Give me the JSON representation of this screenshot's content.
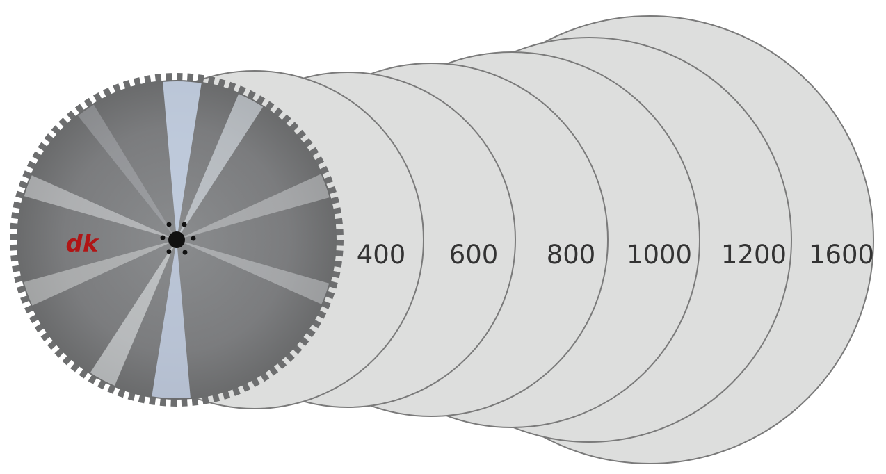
{
  "sizes": [
    {
      "label": "1600",
      "value": 1600
    },
    {
      "label": "1200",
      "value": 1200
    },
    {
      "label": "1000",
      "value": 1000
    },
    {
      "label": "800",
      "value": 800
    },
    {
      "label": "600",
      "value": 600
    },
    {
      "label": "400",
      "value": 400
    }
  ],
  "blade": {
    "logo": "dk",
    "logo_color": "#b01515"
  },
  "colors": {
    "disc_fill": "#dddedd",
    "disc_stroke": "#7a7a7a",
    "label_text": "#333333"
  }
}
